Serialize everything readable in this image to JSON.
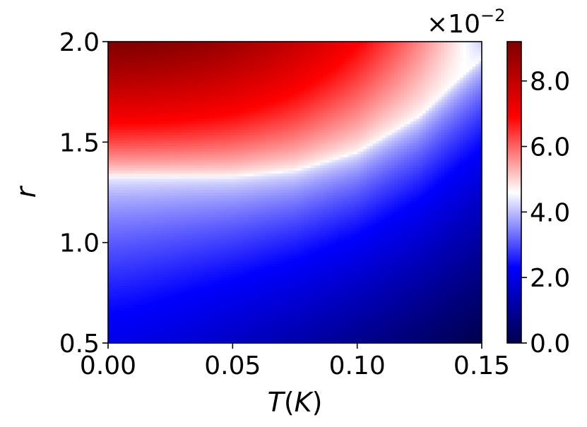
{
  "chart_data": {
    "type": "heatmap",
    "title": "",
    "xlabel": "T(K)",
    "xlabel_parts": {
      "italic_T": "T",
      "paren_open": "(",
      "italic_K": "K",
      "paren_close": ")"
    },
    "ylabel": "r",
    "x_ticks": [
      "0.00",
      "0.05",
      "0.10",
      "0.15"
    ],
    "x_tick_values": [
      0.0,
      0.05,
      0.1,
      0.15
    ],
    "xlim": [
      0.0,
      0.15
    ],
    "y_ticks": [
      "0.5",
      "1.0",
      "1.5",
      "2.0"
    ],
    "y_tick_values": [
      0.5,
      1.0,
      1.5,
      2.0
    ],
    "ylim": [
      0.5,
      2.0
    ],
    "colorbar": {
      "ticks": [
        "0.0",
        "2.0",
        "4.0",
        "6.0",
        "8.0"
      ],
      "tick_values": [
        0.0,
        2.0,
        4.0,
        6.0,
        8.0
      ],
      "range": [
        0.0,
        9.2
      ],
      "multiplier_base": "×10",
      "multiplier_exp": "−2",
      "colormap": "seismic",
      "colormap_stops": [
        "#00004c",
        "#0000ff",
        "#ffffff",
        "#ff0000",
        "#7f0000"
      ]
    },
    "contour_r_at_half": [
      {
        "T": 0.0,
        "r": 1.33
      },
      {
        "T": 0.05,
        "r": 1.33
      },
      {
        "T": 0.075,
        "r": 1.36
      },
      {
        "T": 0.1,
        "r": 1.45
      },
      {
        "T": 0.125,
        "r": 1.63
      },
      {
        "T": 0.15,
        "r": 1.92
      }
    ],
    "grid": false,
    "legend": "none"
  }
}
